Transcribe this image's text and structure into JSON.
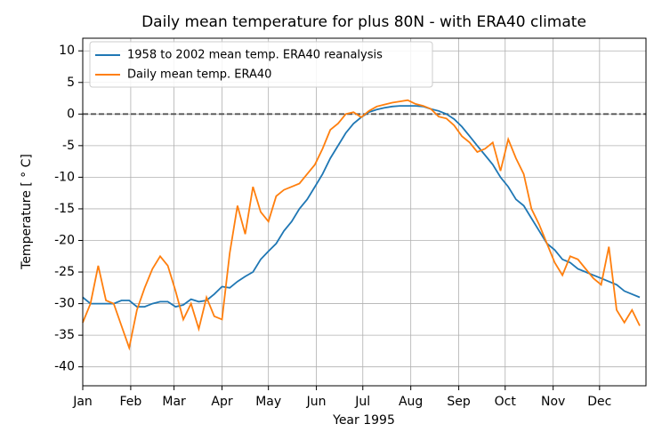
{
  "chart_data": {
    "type": "line",
    "title": "Daily mean temperature for plus 80N - with ERA40 climate",
    "xlabel": "Year 1995",
    "ylabel": "Temperature [ ° C]",
    "x": [
      0,
      5,
      10,
      15,
      20,
      25,
      30,
      35,
      40,
      45,
      50,
      55,
      60,
      65,
      70,
      75,
      80,
      85,
      90,
      95,
      100,
      105,
      110,
      115,
      120,
      125,
      130,
      135,
      140,
      145,
      150,
      155,
      160,
      165,
      170,
      175,
      180,
      185,
      190,
      195,
      200,
      205,
      210,
      215,
      220,
      225,
      230,
      235,
      240,
      245,
      250,
      255,
      260,
      265,
      270,
      275,
      280,
      285,
      290,
      295,
      300,
      305,
      310,
      315,
      320,
      325,
      330,
      335,
      340,
      345,
      350,
      355,
      360
    ],
    "series": [
      {
        "name": "1958 to 2002 mean temp. ERA40 reanalysis",
        "color": "#1f77b4",
        "values": [
          -29,
          -30,
          -30,
          -30,
          -30,
          -29.5,
          -29.5,
          -30.5,
          -30.5,
          -30,
          -29.7,
          -29.7,
          -30.5,
          -30.2,
          -29.3,
          -29.7,
          -29.5,
          -28.5,
          -27.3,
          -27.5,
          -26.5,
          -25.7,
          -25,
          -23,
          -21.7,
          -20.5,
          -18.5,
          -17,
          -15,
          -13.5,
          -11.5,
          -9.5,
          -7,
          -5,
          -3,
          -1.5,
          -0.5,
          0.3,
          0.7,
          1,
          1.2,
          1.3,
          1.3,
          1.3,
          1.2,
          0.8,
          0.5,
          0,
          -0.8,
          -2,
          -3.5,
          -5,
          -6.5,
          -8,
          -10,
          -11.5,
          -13.5,
          -14.5,
          -16.5,
          -18.5,
          -20.5,
          -21.5,
          -23,
          -23.5,
          -24.5,
          -25,
          -25.5,
          -26,
          -26.5,
          -27,
          -28,
          -28.5,
          -29
        ]
      },
      {
        "name": "Daily mean temp. ERA40",
        "color": "#ff7f0e",
        "values": [
          -33,
          -30,
          -24,
          -29.5,
          -30,
          -33.5,
          -37,
          -31,
          -27.5,
          -24.5,
          -22.5,
          -24,
          -28,
          -32.5,
          -30,
          -34,
          -29,
          -32,
          -32.5,
          -22,
          -14.5,
          -19,
          -11.5,
          -15.5,
          -17,
          -13,
          -12,
          -11.5,
          -11,
          -9.5,
          -8,
          -5.5,
          -2.5,
          -1.5,
          0,
          0.3,
          -0.5,
          0.5,
          1.2,
          1.5,
          1.8,
          2,
          2.2,
          1.6,
          1.3,
          0.8,
          -0.4,
          -0.7,
          -1.8,
          -3.5,
          -4.5,
          -6,
          -5.5,
          -4.5,
          -9,
          -4,
          -7,
          -9.5,
          -15,
          -17.5,
          -20.5,
          -23.5,
          -25.5,
          -22.5,
          -23,
          -24.5,
          -26,
          -27,
          -21,
          -31,
          -33,
          -31,
          -33.5
        ]
      }
    ],
    "xlim": [
      0,
      364
    ],
    "xticks": [
      {
        "value": 0,
        "label": "Jan"
      },
      {
        "value": 31,
        "label": "Feb"
      },
      {
        "value": 59,
        "label": "Mar"
      },
      {
        "value": 90,
        "label": "Apr"
      },
      {
        "value": 120,
        "label": "May"
      },
      {
        "value": 151,
        "label": "Jun"
      },
      {
        "value": 181,
        "label": "Jul"
      },
      {
        "value": 212,
        "label": "Aug"
      },
      {
        "value": 243,
        "label": "Sep"
      },
      {
        "value": 273,
        "label": "Oct"
      },
      {
        "value": 304,
        "label": "Nov"
      },
      {
        "value": 334,
        "label": "Dec"
      }
    ],
    "ylim": [
      -43,
      12
    ],
    "yticks": [
      10,
      5,
      0,
      -5,
      -10,
      -15,
      -20,
      -25,
      -30,
      -35,
      -40
    ],
    "hline": 0,
    "grid": true,
    "legend": "upper left"
  }
}
